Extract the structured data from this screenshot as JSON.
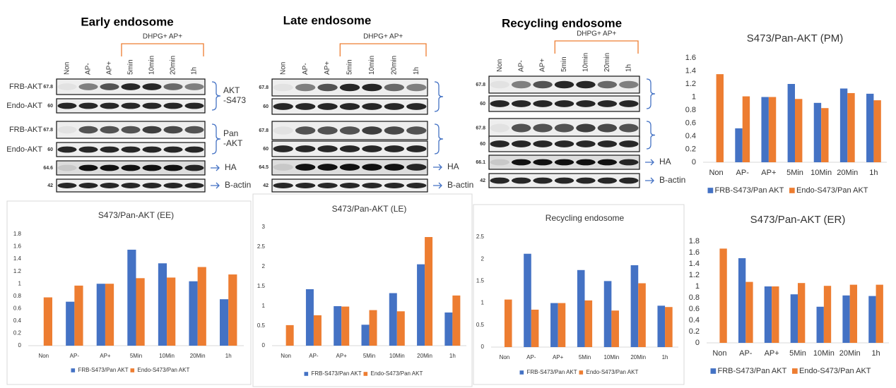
{
  "blots": [
    {
      "title": "Early endosome",
      "lanes": [
        "Non",
        "AP-",
        "AP+",
        "5min",
        "10min",
        "20min",
        "1h"
      ],
      "treatment": "DHPG+ AP+",
      "markers": [
        67.8,
        60,
        67.8,
        60,
        64.6,
        42
      ],
      "left_labels": [
        "FRB-AKT",
        "Endo-AKT",
        "FRB-AKT",
        "Endo-AKT"
      ],
      "bracket_labels": [
        [
          "AKT",
          "-S473"
        ],
        [
          "Pan",
          "-AKT"
        ]
      ],
      "arrow_labels": [
        "HA",
        "B-actin"
      ]
    },
    {
      "title": "Late endosome",
      "lanes": [
        "Non",
        "AP-",
        "AP+",
        "5min",
        "10min",
        "20min",
        "1h"
      ],
      "treatment": "DHPG+ AP+",
      "markers": [
        67.8,
        60,
        67.8,
        60,
        64.5,
        42
      ],
      "arrow_labels": [
        "HA",
        "B-actin"
      ]
    },
    {
      "title": "Recycling endosome",
      "lanes": [
        "Non",
        "AP-",
        "AP+",
        "5min",
        "10min",
        "20min",
        "1h"
      ],
      "treatment": "DHPG+ AP+",
      "markers": [
        67.8,
        60,
        67.8,
        60,
        66.1,
        42
      ],
      "arrow_labels": [
        "HA",
        "B-actin"
      ]
    }
  ],
  "chart_data": [
    {
      "type": "bar",
      "title": "S473/Pan-AKT (PM)",
      "categories": [
        "Non",
        "AP-",
        "AP+",
        "5Min",
        "10Min",
        "20Min",
        "1h"
      ],
      "series": [
        {
          "name": "FRB-S473/Pan AKT",
          "color": "#4472c4",
          "values": [
            0,
            0.52,
            1.0,
            1.2,
            0.91,
            1.13,
            1.05
          ]
        },
        {
          "name": "Endo-S473/Pan AKT",
          "color": "#ed7d31",
          "values": [
            1.35,
            1.01,
            1.0,
            0.97,
            0.83,
            1.06,
            0.95
          ]
        }
      ],
      "ylim": [
        0,
        1.6
      ],
      "yticks": [
        0,
        0.2,
        0.4,
        0.6,
        0.8,
        1,
        1.2,
        1.4,
        1.6
      ]
    },
    {
      "type": "bar",
      "title": "S473/Pan-AKT (EE)",
      "categories": [
        "Non",
        "AP-",
        "AP+",
        "5Min",
        "10Min",
        "20Min",
        "1h"
      ],
      "series": [
        {
          "name": "FRB-S473/Pan AKT",
          "color": "#4472c4",
          "values": [
            0,
            0.71,
            1.0,
            1.55,
            1.33,
            1.04,
            0.75
          ]
        },
        {
          "name": "Endo-S473/Pan AKT",
          "color": "#ed7d31",
          "values": [
            0.78,
            0.97,
            1.0,
            1.09,
            1.1,
            1.27,
            1.15
          ]
        }
      ],
      "ylim": [
        0,
        1.8
      ],
      "yticks": [
        0,
        0.2,
        0.4,
        0.6,
        0.8,
        1,
        1.2,
        1.4,
        1.6,
        1.8
      ]
    },
    {
      "type": "bar",
      "title": "S473/Pan-AKT (LE)",
      "categories": [
        "Non",
        "AP-",
        "AP+",
        "5Min",
        "10Min",
        "20Min",
        "1h"
      ],
      "series": [
        {
          "name": "FRB-S473/Pan AKT",
          "color": "#4472c4",
          "values": [
            0,
            1.43,
            1.0,
            0.53,
            1.33,
            2.06,
            0.84
          ]
        },
        {
          "name": "Endo-S473/Pan AKT",
          "color": "#ed7d31",
          "values": [
            0.52,
            0.77,
            0.99,
            0.9,
            0.87,
            2.75,
            1.27
          ]
        }
      ],
      "ylim": [
        0,
        3
      ],
      "yticks": [
        0,
        0.5,
        1,
        1.5,
        2,
        2.5,
        3
      ]
    },
    {
      "type": "bar",
      "title": "Recycling endosome",
      "categories": [
        "Non",
        "AP-",
        "AP+",
        "5Min",
        "10Min",
        "20Min",
        "1h"
      ],
      "series": [
        {
          "name": "FRB-S473/Pan AKT",
          "color": "#4472c4",
          "values": [
            0,
            2.12,
            1.0,
            1.75,
            1.5,
            1.86,
            0.94
          ]
        },
        {
          "name": "Endo-S473/Pan AKT",
          "color": "#ed7d31",
          "values": [
            1.08,
            0.85,
            1.0,
            1.06,
            0.83,
            1.45,
            0.91
          ]
        }
      ],
      "ylim": [
        0,
        2.5
      ],
      "yticks": [
        0,
        0.5,
        1,
        1.5,
        2,
        2.5
      ]
    },
    {
      "type": "bar",
      "title": "S473/Pan-AKT (ER)",
      "categories": [
        "Non",
        "AP-",
        "AP+",
        "5Min",
        "10Min",
        "20Min",
        "1h"
      ],
      "series": [
        {
          "name": "FRB-S473/Pan AKT",
          "color": "#4472c4",
          "values": [
            0,
            1.5,
            1.0,
            0.86,
            0.64,
            0.84,
            0.83
          ]
        },
        {
          "name": "Endo-S473/Pan AKT",
          "color": "#ed7d31",
          "values": [
            1.67,
            1.08,
            1.0,
            1.06,
            1.01,
            1.03,
            1.03
          ]
        }
      ],
      "ylim": [
        0,
        1.8
      ],
      "yticks": [
        0,
        0.2,
        0.4,
        0.6,
        0.8,
        1,
        1.2,
        1.4,
        1.6,
        1.8
      ]
    }
  ]
}
